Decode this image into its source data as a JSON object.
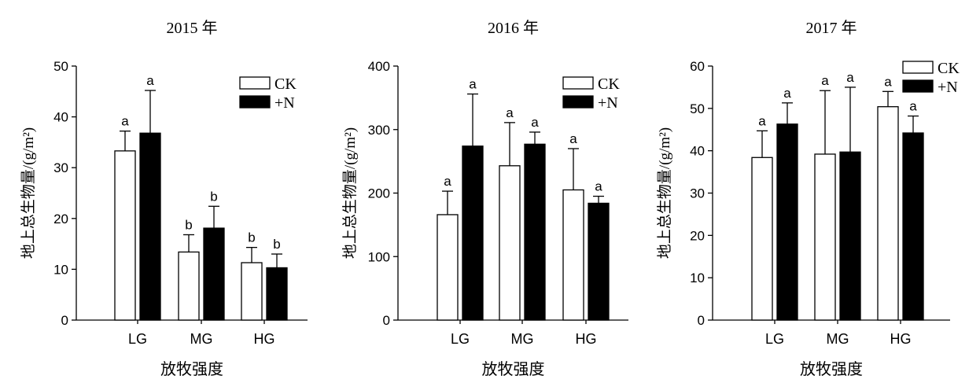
{
  "chart_data": [
    {
      "type": "bar",
      "title": "2015 年",
      "xlabel": "放牧强度",
      "ylabel": "地上总生物量/(g/m²)",
      "ylim": [
        0,
        50
      ],
      "yticks": [
        0,
        10,
        20,
        30,
        40,
        50
      ],
      "categories": [
        "LG",
        "MG",
        "HG"
      ],
      "legend_position": "top-right",
      "series": [
        {
          "name": "CK",
          "fill": "#ffffff",
          "values": [
            33.3,
            13.4,
            11.3
          ],
          "errors": [
            3.9,
            3.4,
            3.0
          ],
          "labels": [
            "a",
            "b",
            "b"
          ]
        },
        {
          "name": "+N",
          "fill": "#000000",
          "values": [
            36.8,
            18.1,
            10.3
          ],
          "errors": [
            8.4,
            4.3,
            2.7
          ],
          "labels": [
            "a",
            "b",
            "b"
          ]
        }
      ]
    },
    {
      "type": "bar",
      "title": "2016 年",
      "xlabel": "放牧强度",
      "ylabel": "地上总生物量/(g/m²)",
      "ylim": [
        0,
        400
      ],
      "yticks": [
        0,
        100,
        200,
        300,
        400
      ],
      "categories": [
        "LG",
        "MG",
        "HG"
      ],
      "legend_position": "top-right",
      "series": [
        {
          "name": "CK",
          "fill": "#ffffff",
          "values": [
            166,
            243,
            205
          ],
          "errors": [
            37,
            68,
            65
          ],
          "labels": [
            "a",
            "a",
            "a"
          ]
        },
        {
          "name": "+N",
          "fill": "#000000",
          "values": [
            274,
            277,
            184
          ],
          "errors": [
            82,
            19,
            11
          ],
          "labels": [
            "a",
            "a",
            "a"
          ]
        }
      ]
    },
    {
      "type": "bar",
      "title": "2017 年",
      "xlabel": "放牧强度",
      "ylabel": "地上总生物量/(g/m²)",
      "ylim": [
        0,
        60
      ],
      "yticks": [
        0,
        10,
        20,
        30,
        40,
        50,
        60
      ],
      "categories": [
        "LG",
        "MG",
        "HG"
      ],
      "legend_position": "top-right",
      "series": [
        {
          "name": "CK",
          "fill": "#ffffff",
          "values": [
            38.4,
            39.2,
            50.4
          ],
          "errors": [
            6.3,
            15.0,
            3.6
          ],
          "labels": [
            "a",
            "a",
            "a"
          ]
        },
        {
          "name": "+N",
          "fill": "#000000",
          "values": [
            46.3,
            39.7,
            44.2
          ],
          "errors": [
            5.0,
            15.3,
            4.0
          ],
          "labels": [
            "a",
            "a",
            "a"
          ]
        }
      ]
    }
  ]
}
